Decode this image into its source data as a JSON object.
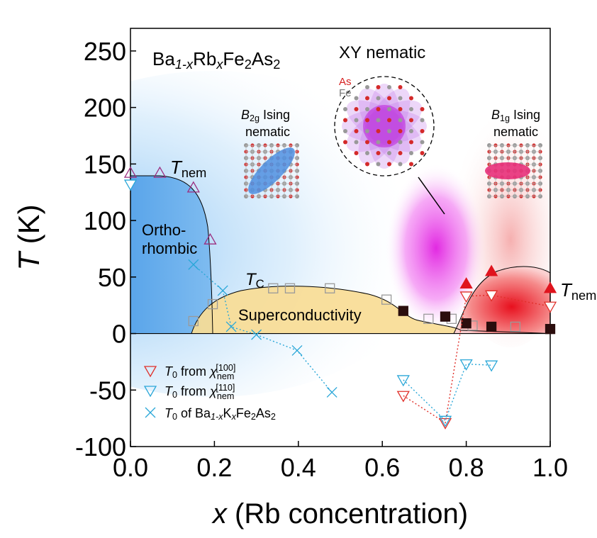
{
  "chart_data": {
    "type": "scatter",
    "xlabel": [
      "x",
      " (Rb concentration)"
    ],
    "ylabel": [
      "T",
      " (K)"
    ],
    "xlim": [
      0,
      1
    ],
    "ylim": [
      -100,
      270
    ],
    "xticks": [
      {
        "value": 0,
        "label": "0.0"
      },
      0.2,
      0.4,
      0.6,
      0.8,
      {
        "value": 1,
        "label": "1.0"
      }
    ],
    "yticks": [
      -100,
      -50,
      0,
      50,
      100,
      150,
      200,
      250
    ],
    "annotations": {
      "compound": [
        "Ba",
        "1-x",
        "Rb",
        "x",
        "Fe",
        "2",
        "As",
        "2"
      ],
      "xy": "XY nematic",
      "as": "As",
      "fe": "Fe",
      "b2g": [
        "B",
        "2g",
        " Ising",
        "nematic"
      ],
      "b1g": [
        "B",
        "1g",
        " Ising",
        "nematic"
      ],
      "tnem_left": [
        "T",
        "nem"
      ],
      "tnem_right": [
        "T",
        "nem"
      ],
      "tc": [
        "T",
        "C"
      ],
      "ortho": [
        "Ortho-",
        "rhombic"
      ],
      "sc": "Superconductivity"
    },
    "series": [
      {
        "marker": "triangle-up",
        "filled": false,
        "color": "#9b2d7f",
        "x": [
          0,
          0.07,
          0.15,
          0.19
        ],
        "values": [
          142,
          142,
          129,
          83
        ]
      },
      {
        "marker": "square",
        "filled": false,
        "color": "#9a9a9a",
        "x": [
          0.15,
          0.196,
          0.34,
          0.38,
          0.475,
          0.61,
          0.71,
          0.765,
          0.815,
          0.917
        ],
        "values": [
          11,
          26,
          40,
          40,
          40,
          30,
          13,
          13,
          7,
          6
        ]
      },
      {
        "marker": "square",
        "filled": true,
        "color": "#2b0d0d",
        "x": [
          0.65,
          0.75,
          0.8,
          0.86,
          1.0
        ],
        "values": [
          20,
          15,
          9,
          6,
          4
        ]
      },
      {
        "marker": "triangle-up",
        "filled": true,
        "color": "#e0141e",
        "x": [
          0.8,
          0.86,
          1.0
        ],
        "values": [
          44,
          55,
          40
        ]
      },
      {
        "name": [
          "T",
          "0",
          " from ",
          "χ",
          "nem",
          "[100]"
        ],
        "marker": "triangle-down",
        "filled": false,
        "line": "dotted",
        "color": "#e0302a",
        "x": [
          0.65,
          0.75,
          0.8,
          0.86,
          1.0
        ],
        "values": [
          -55,
          -79,
          33,
          34,
          24
        ]
      },
      {
        "name": [
          "T",
          "0",
          " from ",
          "χ",
          "nem",
          "[110]"
        ],
        "marker": "triangle-down",
        "filled": false,
        "line": "dotted",
        "color": "#2aa7d8",
        "x": [
          0.65,
          0.75,
          0.8,
          0.86
        ],
        "values": [
          -41,
          -77,
          -27,
          -28
        ]
      },
      {
        "marker": "triangle-down",
        "filled": false,
        "color": "#2aa7d8",
        "x": [
          0
        ],
        "values": [
          132
        ]
      },
      {
        "name": [
          "T",
          "0",
          " of Ba",
          "1-x",
          "K",
          "x",
          "Fe",
          "2",
          "As",
          "2"
        ],
        "marker": "cross",
        "filled": false,
        "line": "dotted",
        "color": "#2aa7d8",
        "x": [
          0.15,
          0.22,
          0.24,
          0.3,
          0.397,
          0.48
        ],
        "values": [
          61,
          38,
          6,
          -1,
          -15,
          -52
        ]
      }
    ]
  }
}
